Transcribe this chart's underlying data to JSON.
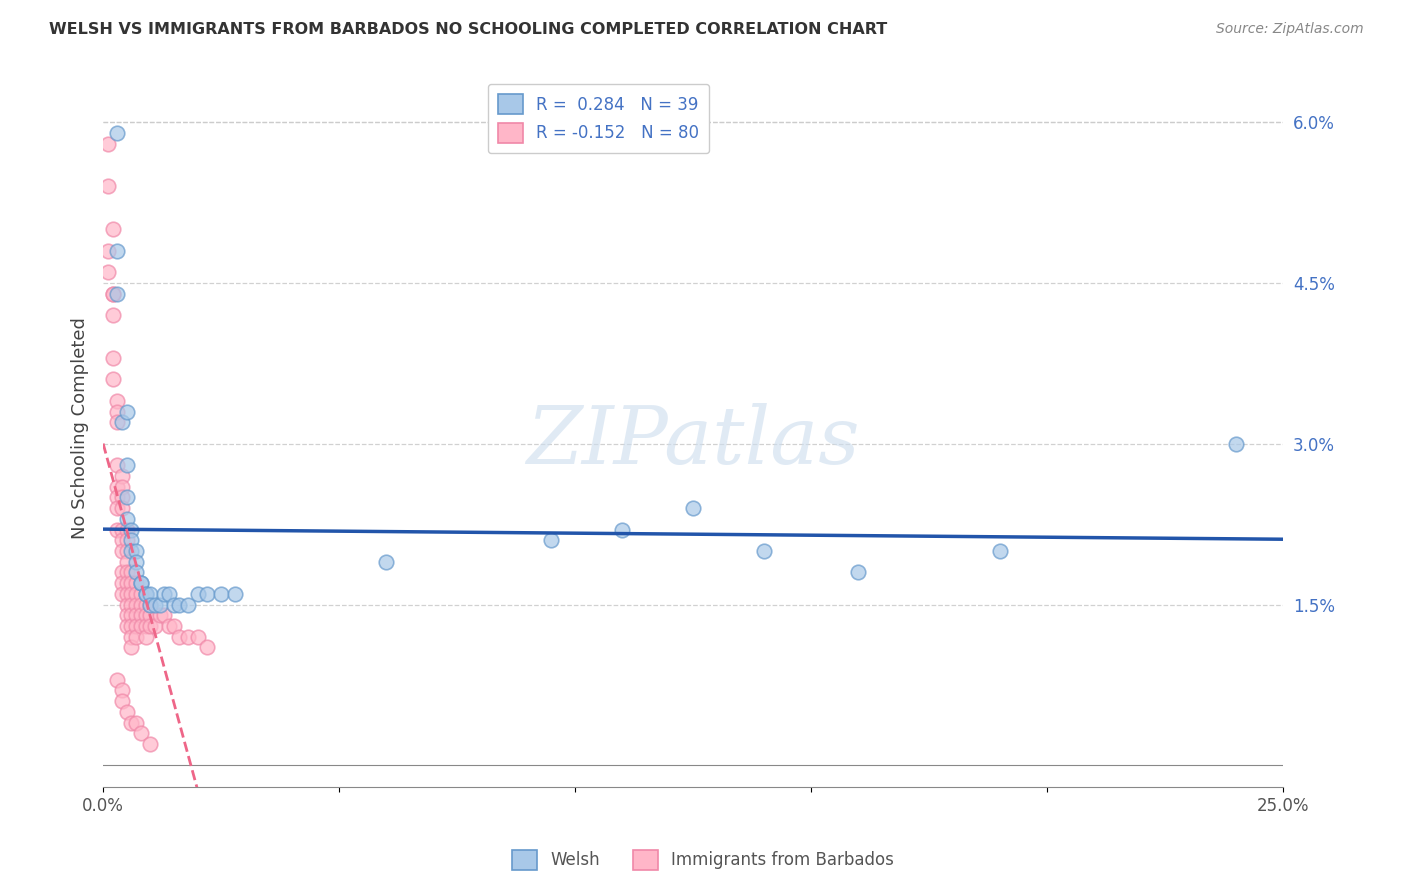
{
  "title": "WELSH VS IMMIGRANTS FROM BARBADOS NO SCHOOLING COMPLETED CORRELATION CHART",
  "source": "Source: ZipAtlas.com",
  "ylabel": "No Schooling Completed",
  "watermark": "ZIPatlas",
  "xlim": [
    0.0,
    0.25
  ],
  "ylim": [
    -0.002,
    0.065
  ],
  "welsh_color": "#a8c8e8",
  "welsh_edge": "#6699cc",
  "barbados_color": "#ffb6c8",
  "barbados_edge": "#f088a8",
  "welsh_line_color": "#2255aa",
  "barbados_line_color": "#ee6688",
  "welsh_points": [
    [
      0.003,
      0.059
    ],
    [
      0.003,
      0.048
    ],
    [
      0.003,
      0.044
    ],
    [
      0.004,
      0.032
    ],
    [
      0.005,
      0.033
    ],
    [
      0.005,
      0.028
    ],
    [
      0.005,
      0.025
    ],
    [
      0.005,
      0.023
    ],
    [
      0.006,
      0.022
    ],
    [
      0.006,
      0.021
    ],
    [
      0.006,
      0.02
    ],
    [
      0.007,
      0.02
    ],
    [
      0.007,
      0.019
    ],
    [
      0.007,
      0.018
    ],
    [
      0.008,
      0.017
    ],
    [
      0.008,
      0.017
    ],
    [
      0.009,
      0.016
    ],
    [
      0.009,
      0.016
    ],
    [
      0.01,
      0.016
    ],
    [
      0.01,
      0.015
    ],
    [
      0.011,
      0.015
    ],
    [
      0.012,
      0.015
    ],
    [
      0.013,
      0.016
    ],
    [
      0.014,
      0.016
    ],
    [
      0.015,
      0.015
    ],
    [
      0.016,
      0.015
    ],
    [
      0.018,
      0.015
    ],
    [
      0.02,
      0.016
    ],
    [
      0.022,
      0.016
    ],
    [
      0.025,
      0.016
    ],
    [
      0.028,
      0.016
    ],
    [
      0.06,
      0.019
    ],
    [
      0.095,
      0.021
    ],
    [
      0.11,
      0.022
    ],
    [
      0.125,
      0.024
    ],
    [
      0.14,
      0.02
    ],
    [
      0.16,
      0.018
    ],
    [
      0.19,
      0.02
    ],
    [
      0.24,
      0.03
    ]
  ],
  "barbados_points": [
    [
      0.001,
      0.054
    ],
    [
      0.001,
      0.058
    ],
    [
      0.001,
      0.048
    ],
    [
      0.001,
      0.046
    ],
    [
      0.002,
      0.044
    ],
    [
      0.002,
      0.042
    ],
    [
      0.002,
      0.044
    ],
    [
      0.002,
      0.05
    ],
    [
      0.002,
      0.038
    ],
    [
      0.002,
      0.036
    ],
    [
      0.003,
      0.034
    ],
    [
      0.003,
      0.033
    ],
    [
      0.003,
      0.032
    ],
    [
      0.003,
      0.028
    ],
    [
      0.003,
      0.026
    ],
    [
      0.003,
      0.025
    ],
    [
      0.003,
      0.024
    ],
    [
      0.003,
      0.022
    ],
    [
      0.004,
      0.027
    ],
    [
      0.004,
      0.026
    ],
    [
      0.004,
      0.025
    ],
    [
      0.004,
      0.024
    ],
    [
      0.004,
      0.022
    ],
    [
      0.004,
      0.021
    ],
    [
      0.004,
      0.02
    ],
    [
      0.004,
      0.018
    ],
    [
      0.004,
      0.017
    ],
    [
      0.004,
      0.016
    ],
    [
      0.005,
      0.022
    ],
    [
      0.005,
      0.021
    ],
    [
      0.005,
      0.02
    ],
    [
      0.005,
      0.019
    ],
    [
      0.005,
      0.018
    ],
    [
      0.005,
      0.017
    ],
    [
      0.005,
      0.016
    ],
    [
      0.005,
      0.015
    ],
    [
      0.005,
      0.014
    ],
    [
      0.005,
      0.013
    ],
    [
      0.006,
      0.018
    ],
    [
      0.006,
      0.017
    ],
    [
      0.006,
      0.016
    ],
    [
      0.006,
      0.015
    ],
    [
      0.006,
      0.014
    ],
    [
      0.006,
      0.013
    ],
    [
      0.006,
      0.012
    ],
    [
      0.006,
      0.011
    ],
    [
      0.007,
      0.017
    ],
    [
      0.007,
      0.016
    ],
    [
      0.007,
      0.015
    ],
    [
      0.007,
      0.014
    ],
    [
      0.007,
      0.013
    ],
    [
      0.007,
      0.012
    ],
    [
      0.008,
      0.016
    ],
    [
      0.008,
      0.015
    ],
    [
      0.008,
      0.014
    ],
    [
      0.008,
      0.013
    ],
    [
      0.009,
      0.015
    ],
    [
      0.009,
      0.014
    ],
    [
      0.009,
      0.013
    ],
    [
      0.009,
      0.012
    ],
    [
      0.01,
      0.014
    ],
    [
      0.01,
      0.013
    ],
    [
      0.01,
      0.015
    ],
    [
      0.011,
      0.013
    ],
    [
      0.012,
      0.014
    ],
    [
      0.013,
      0.014
    ],
    [
      0.014,
      0.013
    ],
    [
      0.015,
      0.013
    ],
    [
      0.016,
      0.012
    ],
    [
      0.018,
      0.012
    ],
    [
      0.02,
      0.012
    ],
    [
      0.022,
      0.011
    ],
    [
      0.003,
      0.008
    ],
    [
      0.004,
      0.007
    ],
    [
      0.004,
      0.006
    ],
    [
      0.005,
      0.005
    ],
    [
      0.006,
      0.004
    ],
    [
      0.007,
      0.004
    ],
    [
      0.008,
      0.003
    ],
    [
      0.01,
      0.002
    ]
  ]
}
